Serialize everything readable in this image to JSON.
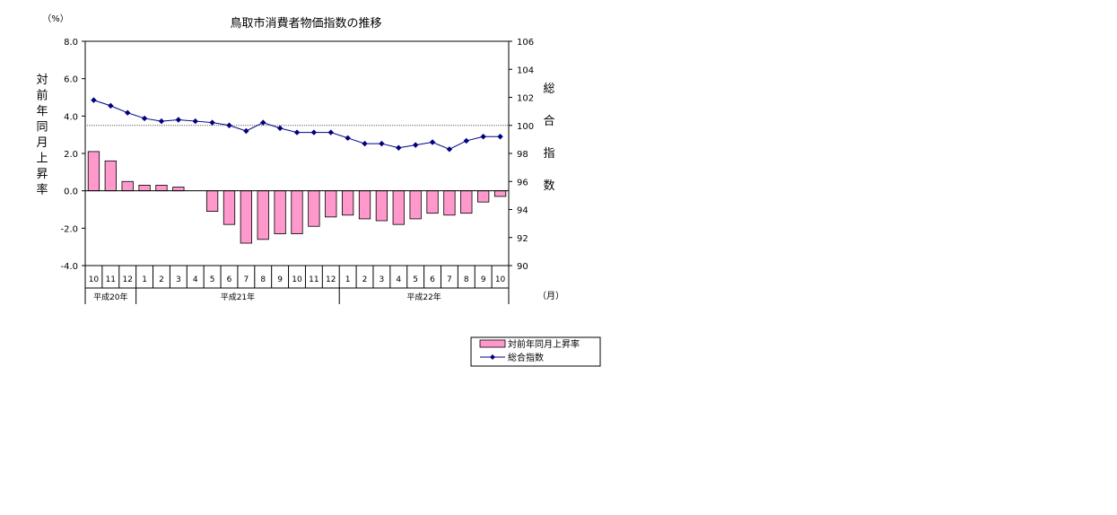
{
  "chart_data": {
    "type": "bar+line",
    "title": "鳥取市消費者物価指数の推移",
    "left_axis": {
      "unit": "（%）",
      "label_chars": [
        "対",
        "前",
        "年",
        "同",
        "月",
        "上",
        "昇",
        "率"
      ],
      "min": -4.0,
      "max": 8.0,
      "step": 2.0,
      "tick_labels": [
        "8.0",
        "6.0",
        "4.0",
        "2.0",
        "0.0",
        "-2.0",
        "-4.0"
      ]
    },
    "right_axis": {
      "label_chars": [
        "総",
        "合",
        "指",
        "数"
      ],
      "min": 90,
      "max": 106,
      "step": 2,
      "tick_labels": [
        "106",
        "104",
        "102",
        "100",
        "98",
        "96",
        "94",
        "92",
        "90"
      ]
    },
    "x_unit": "（月）",
    "categories": [
      "10",
      "11",
      "12",
      "1",
      "2",
      "3",
      "4",
      "5",
      "6",
      "7",
      "8",
      "9",
      "10",
      "11",
      "12",
      "1",
      "2",
      "3",
      "4",
      "5",
      "6",
      "7",
      "8",
      "9",
      "10"
    ],
    "year_groups": [
      {
        "label": "平成20年",
        "start": 0,
        "count": 3
      },
      {
        "label": "平成21年",
        "start": 3,
        "count": 12
      },
      {
        "label": "平成22年",
        "start": 15,
        "count": 10
      }
    ],
    "reference_line_index": 100,
    "series": [
      {
        "name": "対前年同月上昇率",
        "kind": "bar",
        "axis": "left",
        "color": "#ff99cc",
        "values": [
          2.1,
          1.6,
          0.5,
          0.3,
          0.3,
          0.2,
          0.0,
          -1.1,
          -1.8,
          -2.8,
          -2.6,
          -2.3,
          -2.3,
          -1.9,
          -1.4,
          -1.3,
          -1.5,
          -1.6,
          -1.8,
          -1.5,
          -1.2,
          -1.3,
          -1.2,
          -0.6,
          -0.3
        ]
      },
      {
        "name": "総合指数",
        "kind": "line",
        "axis": "right",
        "color": "#000080",
        "values": [
          101.8,
          101.4,
          100.9,
          100.5,
          100.3,
          100.4,
          100.3,
          100.2,
          100.0,
          99.6,
          100.2,
          99.8,
          99.5,
          99.5,
          99.5,
          99.1,
          98.7,
          98.7,
          98.4,
          98.6,
          98.8,
          98.3,
          98.9,
          99.2,
          99.2
        ]
      }
    ]
  }
}
